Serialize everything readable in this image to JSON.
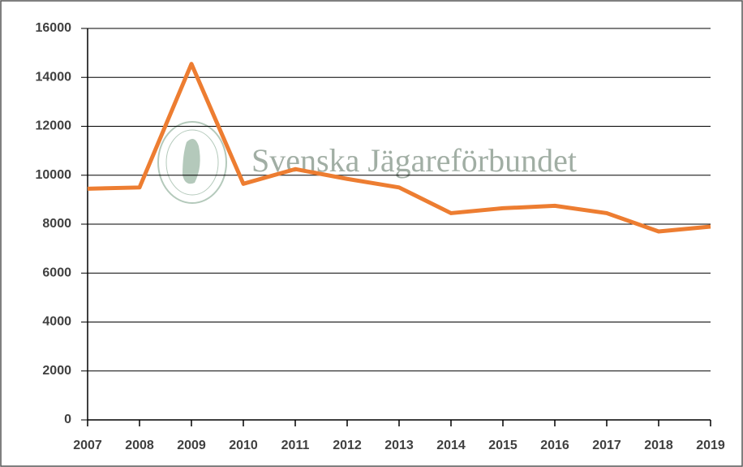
{
  "chart_data": {
    "type": "line",
    "watermark": "Svenska Jägareförbundet",
    "x": [
      2007,
      2008,
      2009,
      2010,
      2011,
      2012,
      2013,
      2014,
      2015,
      2016,
      2017,
      2018,
      2019
    ],
    "series": [
      {
        "color": "#ed7d31",
        "values": [
          9450,
          9500,
          14550,
          9650,
          10250,
          9850,
          9500,
          8450,
          8650,
          8750,
          8450,
          7700,
          7900
        ]
      }
    ],
    "xlim": [
      2007,
      2019
    ],
    "xticks": [
      2007,
      2008,
      2009,
      2010,
      2011,
      2012,
      2013,
      2014,
      2015,
      2016,
      2017,
      2018,
      2019
    ],
    "ylim": [
      0,
      16000
    ],
    "yticks": [
      0,
      2000,
      4000,
      6000,
      8000,
      10000,
      12000,
      14000,
      16000
    ],
    "grid": true
  }
}
